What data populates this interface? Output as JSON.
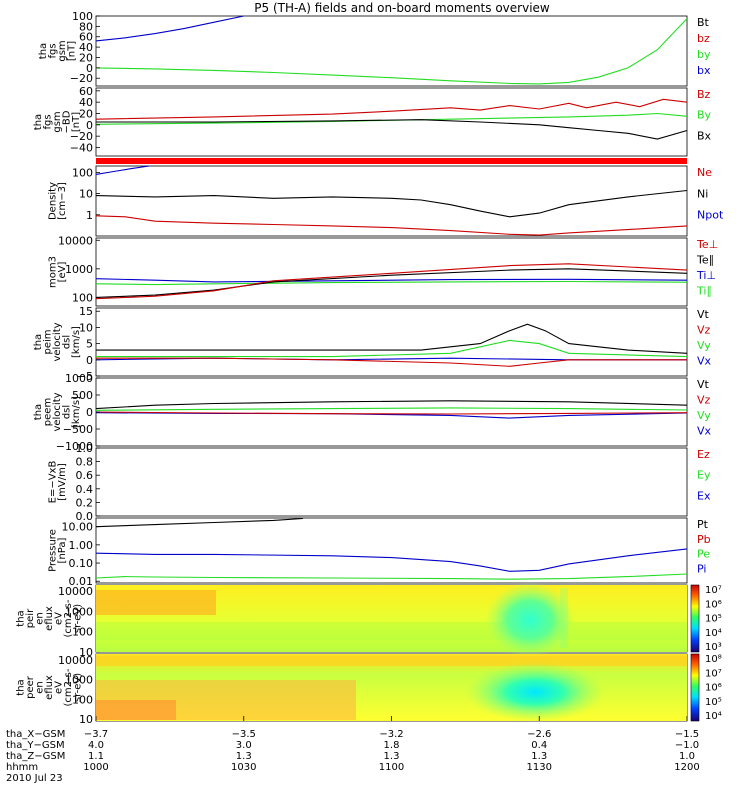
{
  "title": "P5 (TH-A) fields and on-board moments overview",
  "colors": {
    "black": "#000000",
    "red": "#cc0000",
    "green": "#22dd22",
    "blue": "#0000cc",
    "orange": "#ff8800",
    "cyan": "#00cccc",
    "bar_red": "#ff0000"
  },
  "chart_data": [
    {
      "type": "line",
      "ylabel": [
        "tha",
        "fgs",
        "gsm",
        "[nT]"
      ],
      "ylim": [
        -35,
        100
      ],
      "yticks": [
        "100",
        "80",
        "60",
        "40",
        "20",
        "0",
        "−20"
      ],
      "ytick_values": [
        100,
        80,
        60,
        40,
        20,
        0,
        -20
      ],
      "legend": [
        {
          "label": "Bt",
          "color": "#000000"
        },
        {
          "label": "bz",
          "color": "#cc0000"
        },
        {
          "label": "by",
          "color": "#22dd22"
        },
        {
          "label": "bx",
          "color": "#0000cc"
        }
      ],
      "series": [
        {
          "name": "bx",
          "color": "#0000cc",
          "x": [
            0,
            0.05,
            0.1,
            0.15,
            0.2,
            0.25
          ],
          "y": [
            52,
            58,
            66,
            76,
            88,
            100
          ]
        },
        {
          "name": "by",
          "color": "#22dd22",
          "x": [
            0,
            0.1,
            0.2,
            0.3,
            0.4,
            0.5,
            0.6,
            0.7,
            0.75,
            0.8,
            0.85,
            0.9,
            0.95,
            1.0
          ],
          "y": [
            0,
            -2,
            -5,
            -9,
            -14,
            -19,
            -25,
            -30,
            -31,
            -28,
            -18,
            0,
            35,
            95
          ]
        }
      ]
    },
    {
      "type": "line",
      "ylabel": [
        "tha",
        "fgs",
        "gsm",
        "−BD",
        "[nT]"
      ],
      "ylim": [
        -55,
        65
      ],
      "yticks": [
        "60",
        "40",
        "20",
        "0",
        "−20",
        "−40"
      ],
      "ytick_values": [
        60,
        40,
        20,
        0,
        -20,
        -40
      ],
      "legend": [
        {
          "label": "Bz",
          "color": "#cc0000"
        },
        {
          "label": "By",
          "color": "#22dd22"
        },
        {
          "label": "Bx",
          "color": "#000000"
        }
      ],
      "series": [
        {
          "name": "Bz",
          "color": "#cc0000",
          "x": [
            0,
            0.2,
            0.4,
            0.5,
            0.6,
            0.65,
            0.7,
            0.75,
            0.8,
            0.83,
            0.88,
            0.92,
            0.96,
            1.0
          ],
          "y": [
            10,
            14,
            19,
            24,
            30,
            26,
            34,
            28,
            38,
            30,
            40,
            32,
            45,
            40
          ]
        },
        {
          "name": "By",
          "color": "#22dd22",
          "x": [
            0,
            0.2,
            0.4,
            0.6,
            0.8,
            0.9,
            0.95,
            1.0
          ],
          "y": [
            1,
            3,
            6,
            10,
            14,
            17,
            20,
            15
          ]
        },
        {
          "name": "Bx",
          "color": "#000000",
          "x": [
            0,
            0.2,
            0.4,
            0.55,
            0.65,
            0.75,
            0.8,
            0.85,
            0.9,
            0.95,
            1.0
          ],
          "y": [
            5,
            5,
            7,
            9,
            5,
            0,
            -5,
            -10,
            -15,
            -25,
            -10
          ]
        }
      ]
    },
    {
      "type": "line",
      "ylabel": [
        "Density",
        "[cm−3]"
      ],
      "scale": "log",
      "ylim": [
        0.1,
        200
      ],
      "yticks": [
        "100",
        "10",
        "1"
      ],
      "ytick_values": [
        100,
        10,
        1
      ],
      "legend": [
        {
          "label": "Ne",
          "color": "#cc0000"
        },
        {
          "label": "Ni",
          "color": "#000000"
        },
        {
          "label": "Npot",
          "color": "#0000cc"
        }
      ],
      "series": [
        {
          "name": "Npot",
          "color": "#0000cc",
          "x": [
            0,
            0.03,
            0.06,
            0.09
          ],
          "y": [
            80,
            110,
            150,
            200
          ]
        },
        {
          "name": "Ni",
          "color": "#000000",
          "x": [
            0,
            0.1,
            0.2,
            0.3,
            0.4,
            0.5,
            0.55,
            0.6,
            0.65,
            0.7,
            0.75,
            0.8,
            0.9,
            1.0
          ],
          "y": [
            8,
            7,
            8,
            6,
            7,
            6,
            5,
            3,
            1.5,
            0.8,
            1.2,
            3,
            7,
            14
          ]
        },
        {
          "name": "Ne",
          "color": "#cc0000",
          "x": [
            0,
            0.05,
            0.1,
            0.2,
            0.3,
            0.4,
            0.5,
            0.6,
            0.7,
            0.75,
            0.8,
            0.9,
            1.0
          ],
          "y": [
            0.9,
            0.8,
            0.5,
            0.4,
            0.35,
            0.3,
            0.25,
            0.18,
            0.12,
            0.11,
            0.14,
            0.2,
            0.3
          ]
        }
      ]
    },
    {
      "type": "line",
      "ylabel": [
        "mom3",
        "[eV]"
      ],
      "scale": "log",
      "ylim": [
        50,
        12000
      ],
      "yticks": [
        "10000",
        "1000",
        "100"
      ],
      "ytick_values": [
        10000,
        1000,
        100
      ],
      "legend": [
        {
          "label": "Te⊥",
          "color": "#cc0000"
        },
        {
          "label": "Te∥",
          "color": "#000000"
        },
        {
          "label": "Ti⊥",
          "color": "#0000cc"
        },
        {
          "label": "Ti∥",
          "color": "#22dd22"
        }
      ],
      "series": [
        {
          "name": "Ti⊥",
          "color": "#0000cc",
          "x": [
            0,
            0.1,
            0.2,
            0.4,
            0.6,
            0.8,
            1.0
          ],
          "y": [
            450,
            400,
            350,
            380,
            420,
            430,
            400
          ]
        },
        {
          "name": "Ti∥",
          "color": "#22dd22",
          "x": [
            0,
            0.1,
            0.2,
            0.4,
            0.6,
            0.8,
            1.0
          ],
          "y": [
            300,
            280,
            300,
            330,
            350,
            360,
            340
          ]
        },
        {
          "name": "Te∥",
          "color": "#000000",
          "x": [
            0,
            0.1,
            0.2,
            0.3,
            0.5,
            0.7,
            0.8,
            1.0
          ],
          "y": [
            100,
            120,
            180,
            350,
            600,
            900,
            1000,
            700
          ]
        },
        {
          "name": "Te⊥",
          "color": "#cc0000",
          "x": [
            0,
            0.1,
            0.2,
            0.3,
            0.5,
            0.7,
            0.8,
            1.0
          ],
          "y": [
            90,
            110,
            170,
            380,
            700,
            1300,
            1500,
            900
          ]
        }
      ]
    },
    {
      "type": "line",
      "ylabel": [
        "tha",
        "peim",
        "velocity",
        "dsl",
        "[km/s]"
      ],
      "ylim": [
        -5,
        16
      ],
      "yticks": [
        "15",
        "10",
        "5",
        "0",
        "−5"
      ],
      "ytick_values": [
        15,
        10,
        5,
        0,
        -5
      ],
      "legend": [
        {
          "label": "Vt",
          "color": "#000000"
        },
        {
          "label": "Vz",
          "color": "#cc0000"
        },
        {
          "label": "Vy",
          "color": "#22dd22"
        },
        {
          "label": "Vx",
          "color": "#0000cc"
        }
      ],
      "series": [
        {
          "name": "Vx",
          "color": "#0000cc",
          "x": [
            0,
            0.2,
            0.4,
            0.6,
            0.8,
            1.0
          ],
          "y": [
            0,
            0.5,
            0,
            0.5,
            0,
            0
          ]
        },
        {
          "name": "Vy",
          "color": "#22dd22",
          "x": [
            0,
            0.2,
            0.4,
            0.6,
            0.7,
            0.75,
            0.8,
            1.0
          ],
          "y": [
            1,
            1,
            1,
            2,
            6,
            5,
            2,
            1
          ]
        },
        {
          "name": "Vz",
          "color": "#cc0000",
          "x": [
            0,
            0.2,
            0.4,
            0.6,
            0.7,
            0.75,
            0.8,
            1.0
          ],
          "y": [
            0.5,
            0.5,
            0,
            -1,
            -2,
            -1,
            0,
            0
          ]
        },
        {
          "name": "Vt",
          "color": "#000000",
          "x": [
            0,
            0.2,
            0.4,
            0.55,
            0.65,
            0.7,
            0.73,
            0.76,
            0.8,
            0.9,
            1.0
          ],
          "y": [
            3,
            3,
            3,
            3,
            5,
            9,
            11,
            9,
            5,
            3,
            2
          ]
        }
      ]
    },
    {
      "type": "line",
      "ylabel": [
        "tha",
        "peem",
        "velocity",
        "dsl",
        "[km/s]"
      ],
      "ylim": [
        -1000,
        1000
      ],
      "yticks": [
        "1000",
        "500",
        "0",
        "−500",
        "−1000"
      ],
      "ytick_values": [
        1000,
        500,
        0,
        -500,
        -1000
      ],
      "legend": [
        {
          "label": "Vt",
          "color": "#000000"
        },
        {
          "label": "Vz",
          "color": "#cc0000"
        },
        {
          "label": "Vy",
          "color": "#22dd22"
        },
        {
          "label": "Vx",
          "color": "#0000cc"
        }
      ],
      "series": [
        {
          "name": "Vx",
          "color": "#0000cc",
          "x": [
            0,
            0.2,
            0.4,
            0.6,
            0.7,
            0.8,
            1.0
          ],
          "y": [
            -20,
            -40,
            -50,
            -100,
            -180,
            -100,
            -30
          ]
        },
        {
          "name": "Vz",
          "color": "#cc0000",
          "x": [
            0,
            0.2,
            0.4,
            0.6,
            0.8,
            1.0
          ],
          "y": [
            0,
            -30,
            -50,
            -60,
            -40,
            -20
          ]
        },
        {
          "name": "Vy",
          "color": "#22dd22",
          "x": [
            0,
            0.2,
            0.4,
            0.6,
            0.8,
            1.0
          ],
          "y": [
            50,
            80,
            100,
            120,
            100,
            60
          ]
        },
        {
          "name": "Vt",
          "color": "#000000",
          "x": [
            0,
            0.1,
            0.2,
            0.4,
            0.6,
            0.8,
            1.0
          ],
          "y": [
            100,
            200,
            250,
            300,
            330,
            300,
            200
          ]
        }
      ]
    },
    {
      "type": "line",
      "ylabel": [
        "E=−VxB",
        "[mV/m]"
      ],
      "ylim": [
        0,
        1
      ],
      "yticks": [
        "1.0",
        "0.8",
        "0.6",
        "0.4",
        "0.2",
        "0.0"
      ],
      "ytick_values": [
        1,
        0.8,
        0.6,
        0.4,
        0.2,
        0
      ],
      "legend": [
        {
          "label": "Ez",
          "color": "#cc0000"
        },
        {
          "label": "Ey",
          "color": "#22dd22"
        },
        {
          "label": "Ex",
          "color": "#0000cc"
        }
      ],
      "series": []
    },
    {
      "type": "line",
      "ylabel": [
        "Pressure",
        "[nPa]"
      ],
      "scale": "log",
      "ylim": [
        0.008,
        30
      ],
      "yticks": [
        "10.00",
        "1.00",
        "0.10",
        "0.01"
      ],
      "ytick_values": [
        10,
        1,
        0.1,
        0.01
      ],
      "legend": [
        {
          "label": "Pt",
          "color": "#000000"
        },
        {
          "label": "Pb",
          "color": "#cc0000"
        },
        {
          "label": "Pe",
          "color": "#22dd22"
        },
        {
          "label": "Pi",
          "color": "#0000cc"
        }
      ],
      "series": [
        {
          "name": "Pt",
          "color": "#000000",
          "x": [
            0,
            0.1,
            0.2,
            0.3,
            0.35
          ],
          "y": [
            10,
            13,
            17,
            22,
            28
          ]
        },
        {
          "name": "Pi",
          "color": "#0000cc",
          "x": [
            0,
            0.1,
            0.2,
            0.4,
            0.5,
            0.6,
            0.65,
            0.7,
            0.75,
            0.8,
            0.9,
            1.0
          ],
          "y": [
            0.35,
            0.3,
            0.3,
            0.25,
            0.2,
            0.12,
            0.07,
            0.035,
            0.04,
            0.09,
            0.25,
            0.6
          ]
        },
        {
          "name": "Pe",
          "color": "#22dd22",
          "x": [
            0,
            0.05,
            0.1,
            0.2,
            0.4,
            0.6,
            0.7,
            0.8,
            0.9,
            1.0
          ],
          "y": [
            0.015,
            0.018,
            0.017,
            0.016,
            0.015,
            0.014,
            0.013,
            0.014,
            0.018,
            0.025
          ]
        }
      ]
    },
    {
      "type": "heatmap",
      "ylabel": [
        "tha",
        "peir",
        "en",
        "eflux",
        "eV",
        "(cm2-s-",
        "sr-eV)"
      ],
      "scale": "log",
      "ylim": [
        10,
        20000
      ],
      "yticks": [
        "10000",
        "1000",
        "100",
        "10"
      ],
      "ytick_values": [
        10000,
        1000,
        100,
        10
      ],
      "colorbar_ticks": [
        "10⁷",
        "10⁶",
        "10⁵",
        "10⁴",
        "10³"
      ]
    },
    {
      "type": "heatmap",
      "ylabel": [
        "tha",
        "peer",
        "en",
        "eflux",
        "eV",
        "(cm2-s-",
        "sr-eV)"
      ],
      "scale": "log",
      "ylim": [
        8,
        20000
      ],
      "yticks": [
        "10000",
        "1000",
        "100",
        "10"
      ],
      "ytick_values": [
        10000,
        1000,
        100,
        10
      ],
      "colorbar_ticks": [
        "10⁸",
        "10⁷",
        "10⁶",
        "10⁵",
        "10⁴"
      ]
    }
  ],
  "xaxis": {
    "ticks": [
      0,
      0.25,
      0.5,
      0.75,
      1.0
    ],
    "rows": [
      {
        "label": "tha_X−GSM",
        "values": [
          "−3.7",
          "−3.5",
          "−3.2",
          "−2.6",
          "−1.5"
        ]
      },
      {
        "label": "tha_Y−GSM",
        "values": [
          "4.0",
          "3.0",
          "1.8",
          "0.4",
          "−1.0"
        ]
      },
      {
        "label": "tha_Z−GSM",
        "values": [
          "1.1",
          "1.3",
          "1.3",
          "1.3",
          "1.0"
        ]
      },
      {
        "label": "hhmm",
        "values": [
          "1000",
          "1030",
          "1100",
          "1130",
          "1200"
        ]
      }
    ],
    "date": "2010 Jul 23"
  }
}
